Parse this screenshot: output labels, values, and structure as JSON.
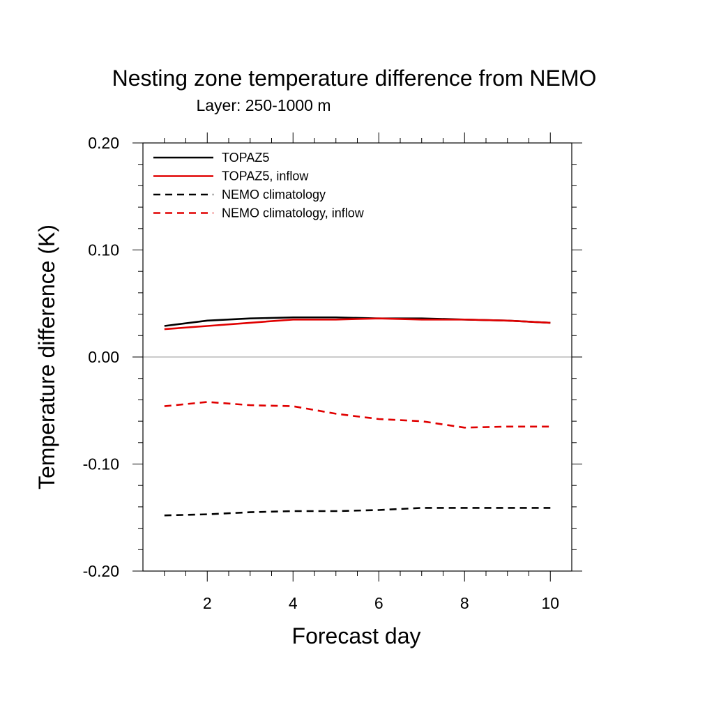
{
  "chart_data": {
    "type": "line",
    "title": "Nesting zone temperature difference from NEMO",
    "subtitle": "Layer: 250-1000 m",
    "xlabel": "Forecast day",
    "ylabel": "Temperature difference (K)",
    "xlim": [
      0.5,
      10.5
    ],
    "ylim": [
      -0.2,
      0.2
    ],
    "x_ticks": [
      2,
      4,
      6,
      8,
      10
    ],
    "x_tick_labels": [
      "2",
      "4",
      "6",
      "8",
      "10"
    ],
    "y_ticks": [
      -0.2,
      -0.1,
      0.0,
      0.1,
      0.2
    ],
    "y_tick_labels": [
      "-0.20",
      "-0.10",
      "0.00",
      "0.10",
      "0.20"
    ],
    "zero_line": true,
    "grid": false,
    "legend_position": "top-left",
    "x": [
      1,
      2,
      3,
      4,
      5,
      6,
      7,
      8,
      9,
      10
    ],
    "series": [
      {
        "name": "TOPAZ5",
        "color": "#000000",
        "dash": "solid",
        "values": [
          0.029,
          0.034,
          0.036,
          0.037,
          0.037,
          0.036,
          0.036,
          0.035,
          0.034,
          0.032
        ]
      },
      {
        "name": "TOPAZ5, inflow",
        "color": "#e00000",
        "dash": "solid",
        "values": [
          0.026,
          0.029,
          0.032,
          0.035,
          0.035,
          0.036,
          0.035,
          0.035,
          0.034,
          0.032
        ]
      },
      {
        "name": "NEMO climatology",
        "color": "#000000",
        "dash": "dashed",
        "values": [
          -0.148,
          -0.147,
          -0.145,
          -0.144,
          -0.144,
          -0.143,
          -0.141,
          -0.141,
          -0.141,
          -0.141
        ]
      },
      {
        "name": "NEMO climatology, inflow",
        "color": "#e00000",
        "dash": "dashed",
        "values": [
          -0.046,
          -0.042,
          -0.045,
          -0.046,
          -0.053,
          -0.058,
          -0.06,
          -0.066,
          -0.065,
          -0.065
        ]
      }
    ]
  }
}
